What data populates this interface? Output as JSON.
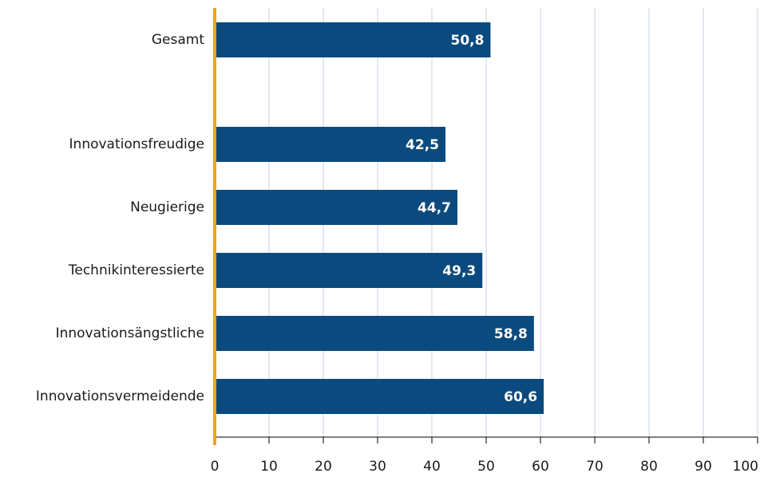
{
  "chart_data": {
    "type": "bar",
    "orientation": "horizontal",
    "categories": [
      "Gesamt",
      "Innovationsfreudige",
      "Neugierige",
      "Technikinteressierte",
      "Innovationsängstliche",
      "Innovationsvermeidende"
    ],
    "values": [
      50.8,
      42.5,
      44.7,
      49.3,
      58.8,
      60.6
    ],
    "value_labels": [
      "50,8",
      "42,5",
      "44,7",
      "49,3",
      "58,8",
      "60,6"
    ],
    "color": "#0b4a7e",
    "xlim": [
      0,
      100
    ],
    "xticks": [
      0,
      10,
      20,
      30,
      40,
      50,
      60,
      70,
      80,
      90,
      100
    ],
    "grid": true
  }
}
